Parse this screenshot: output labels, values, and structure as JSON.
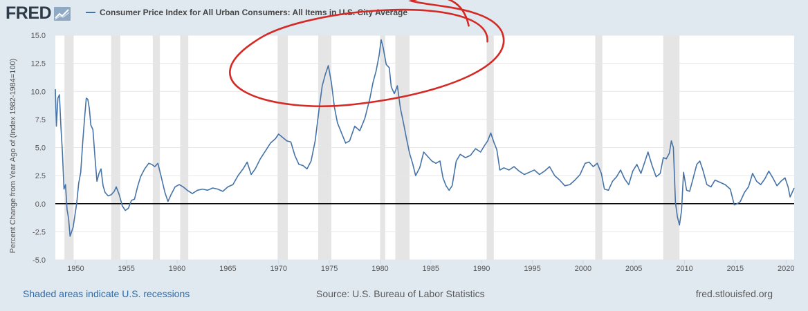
{
  "header": {
    "logo_text": "FRED",
    "logo_icon": "chart-trend-icon"
  },
  "footer": {
    "recessions_note": "Shaded areas indicate U.S. recessions",
    "source": "Source: U.S. Bureau of Labor Statistics",
    "site": "fred.stlouisfed.org"
  },
  "colors": {
    "series": "#4572a7",
    "recession": "#e5e5e5",
    "annotation": "#d42a25",
    "background": "#e1e9f0",
    "plot": "#ffffff"
  },
  "chart_data": {
    "type": "line",
    "title": "",
    "xlabel": "",
    "ylabel": "Percent Change from Year Ago of (Index 1982-1984=100)",
    "xlim": [
      1948,
      2020.8
    ],
    "ylim": [
      -5.0,
      15.0
    ],
    "yticks": [
      -5.0,
      -2.5,
      0.0,
      2.5,
      5.0,
      7.5,
      10.0,
      12.5,
      15.0
    ],
    "ytick_labels": [
      "-5.0",
      "-2.5",
      "0.0",
      "2.5",
      "5.0",
      "7.5",
      "10.0",
      "12.5",
      "15.0"
    ],
    "xticks": [
      1950,
      1955,
      1960,
      1965,
      1970,
      1975,
      1980,
      1985,
      1990,
      1995,
      2000,
      2005,
      2010,
      2015,
      2020
    ],
    "xtick_labels": [
      "1950",
      "1955",
      "1960",
      "1965",
      "1970",
      "1975",
      "1980",
      "1985",
      "1990",
      "1995",
      "2000",
      "2005",
      "2010",
      "2015",
      "2020"
    ],
    "grid": "horizontal",
    "zero_line": true,
    "legend_position": "top-left",
    "series": [
      {
        "name": "Consumer Price Index for All Urban Consumers: All Items in U.S. City Average",
        "x": [
          1948.0,
          1948.1,
          1948.25,
          1948.4,
          1948.55,
          1948.7,
          1948.85,
          1949.0,
          1949.15,
          1949.3,
          1949.45,
          1949.6,
          1949.75,
          1949.9,
          1950.1,
          1950.3,
          1950.5,
          1950.7,
          1950.9,
          1951.05,
          1951.2,
          1951.35,
          1951.5,
          1951.7,
          1951.9,
          1952.1,
          1952.3,
          1952.5,
          1952.7,
          1952.9,
          1953.2,
          1953.5,
          1953.8,
          1954.0,
          1954.3,
          1954.6,
          1954.9,
          1955.2,
          1955.5,
          1955.8,
          1956.1,
          1956.4,
          1956.8,
          1957.2,
          1957.5,
          1957.8,
          1958.1,
          1958.4,
          1958.8,
          1959.1,
          1959.4,
          1959.8,
          1960.2,
          1960.6,
          1961.0,
          1961.5,
          1962.0,
          1962.5,
          1963.0,
          1963.5,
          1964.0,
          1964.5,
          1965.0,
          1965.5,
          1966.0,
          1966.5,
          1966.9,
          1967.3,
          1967.7,
          1968.2,
          1968.7,
          1969.2,
          1969.7,
          1970.0,
          1970.4,
          1970.8,
          1971.2,
          1971.6,
          1972.0,
          1972.4,
          1972.8,
          1973.2,
          1973.6,
          1974.0,
          1974.3,
          1974.6,
          1974.9,
          1975.2,
          1975.5,
          1975.8,
          1976.2,
          1976.6,
          1977.0,
          1977.5,
          1978.0,
          1978.5,
          1979.0,
          1979.3,
          1979.6,
          1979.9,
          1980.1,
          1980.3,
          1980.6,
          1980.9,
          1981.1,
          1981.4,
          1981.7,
          1982.0,
          1982.3,
          1982.6,
          1982.9,
          1983.2,
          1983.5,
          1983.9,
          1984.3,
          1984.7,
          1985.1,
          1985.5,
          1985.9,
          1986.2,
          1986.5,
          1986.8,
          1987.1,
          1987.5,
          1987.9,
          1988.4,
          1988.9,
          1989.4,
          1989.9,
          1990.3,
          1990.6,
          1990.9,
          1991.2,
          1991.5,
          1991.8,
          1992.2,
          1992.7,
          1993.2,
          1993.7,
          1994.2,
          1994.7,
          1995.2,
          1995.7,
          1996.2,
          1996.7,
          1997.2,
          1997.7,
          1998.2,
          1998.7,
          1999.2,
          1999.7,
          2000.2,
          2000.6,
          2001.0,
          2001.4,
          2001.8,
          2002.1,
          2002.5,
          2002.9,
          2003.3,
          2003.7,
          2004.1,
          2004.5,
          2004.9,
          2005.3,
          2005.7,
          2006.0,
          2006.4,
          2006.8,
          2007.2,
          2007.6,
          2007.9,
          2008.2,
          2008.5,
          2008.7,
          2008.9,
          2009.1,
          2009.3,
          2009.5,
          2009.7,
          2009.9,
          2010.2,
          2010.5,
          2010.8,
          2011.2,
          2011.5,
          2011.8,
          2012.2,
          2012.6,
          2013.0,
          2013.5,
          2014.0,
          2014.5,
          2014.9,
          2015.2,
          2015.5,
          2015.9,
          2016.3,
          2016.7,
          2017.1,
          2017.5,
          2017.9,
          2018.3,
          2018.7,
          2019.1,
          2019.5,
          2019.9,
          2020.2,
          2020.4,
          2020.6,
          2020.8
        ],
        "y": [
          10.2,
          6.9,
          9.4,
          9.7,
          6.8,
          4.5,
          1.3,
          1.7,
          -0.5,
          -1.3,
          -2.9,
          -2.5,
          -2.1,
          -1.2,
          0.0,
          1.8,
          2.8,
          5.5,
          7.8,
          9.4,
          9.3,
          8.5,
          7.0,
          6.6,
          4.2,
          2.0,
          2.7,
          3.1,
          1.6,
          1.0,
          0.7,
          0.8,
          1.1,
          1.5,
          0.8,
          -0.2,
          -0.6,
          -0.4,
          0.3,
          0.4,
          1.5,
          2.4,
          3.1,
          3.6,
          3.5,
          3.3,
          3.6,
          2.5,
          1.0,
          0.2,
          0.8,
          1.5,
          1.7,
          1.5,
          1.2,
          0.9,
          1.2,
          1.3,
          1.2,
          1.4,
          1.3,
          1.1,
          1.5,
          1.7,
          2.5,
          3.1,
          3.7,
          2.6,
          3.1,
          4.0,
          4.7,
          5.4,
          5.8,
          6.2,
          5.9,
          5.6,
          5.5,
          4.3,
          3.5,
          3.4,
          3.1,
          3.8,
          5.6,
          8.5,
          10.5,
          11.5,
          12.3,
          10.8,
          8.6,
          7.2,
          6.3,
          5.4,
          5.6,
          6.9,
          6.5,
          7.6,
          9.4,
          10.8,
          11.8,
          13.2,
          14.6,
          13.9,
          12.4,
          12.1,
          10.4,
          9.8,
          10.5,
          8.5,
          7.2,
          5.8,
          4.5,
          3.6,
          2.5,
          3.2,
          4.6,
          4.2,
          3.8,
          3.6,
          3.8,
          2.3,
          1.6,
          1.2,
          1.6,
          3.8,
          4.4,
          4.1,
          4.3,
          4.9,
          4.6,
          5.2,
          5.6,
          6.3,
          5.5,
          4.8,
          3.0,
          3.2,
          3.0,
          3.3,
          2.9,
          2.6,
          2.8,
          3.0,
          2.6,
          2.9,
          3.3,
          2.5,
          2.1,
          1.6,
          1.7,
          2.1,
          2.6,
          3.6,
          3.7,
          3.3,
          3.6,
          2.7,
          1.3,
          1.2,
          2.0,
          2.4,
          3.0,
          2.2,
          1.7,
          2.9,
          3.5,
          2.7,
          3.5,
          4.6,
          3.4,
          2.4,
          2.7,
          4.1,
          4.0,
          4.5,
          5.6,
          5.0,
          0.1,
          -1.2,
          -1.9,
          -0.6,
          2.8,
          1.2,
          1.1,
          2.1,
          3.5,
          3.8,
          3.0,
          1.7,
          1.5,
          2.1,
          1.9,
          1.7,
          1.3,
          -0.1,
          0.0,
          0.2,
          1.0,
          1.5,
          2.7,
          2.0,
          1.7,
          2.2,
          2.9,
          2.3,
          1.6,
          2.0,
          2.3,
          1.5,
          0.6,
          1.0,
          1.4
        ]
      }
    ],
    "recessions": [
      [
        1948.9,
        1949.8
      ],
      [
        1953.5,
        1954.4
      ],
      [
        1957.6,
        1958.3
      ],
      [
        1960.3,
        1961.1
      ],
      [
        1969.9,
        1970.9
      ],
      [
        1973.9,
        1975.2
      ],
      [
        1980.0,
        1980.5
      ],
      [
        1981.5,
        1982.9
      ],
      [
        1990.5,
        1991.2
      ],
      [
        2001.2,
        2001.9
      ],
      [
        2007.9,
        2009.5
      ]
    ],
    "annotation": "red hand-drawn circle around 1973-1981 inflation peaks"
  }
}
